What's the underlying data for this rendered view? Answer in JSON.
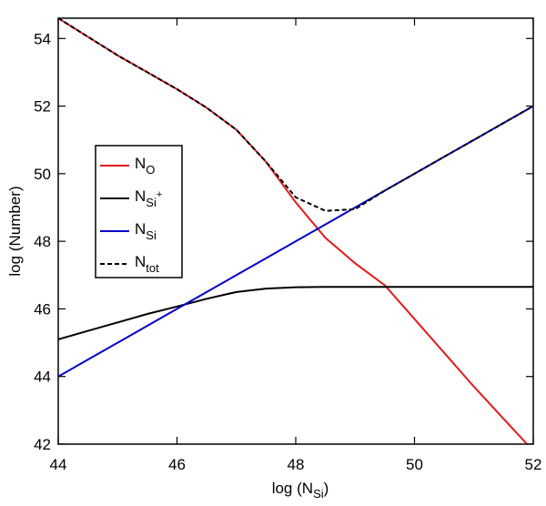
{
  "chart_data": {
    "type": "line",
    "x_label": "log (N",
    "x_label_sub": "Si",
    "x_label_end": ")",
    "y_label": "log (Number)",
    "x": [
      44,
      44.5,
      45,
      45.5,
      46,
      46.5,
      47,
      47.5,
      48,
      48.5,
      49,
      49.5,
      50,
      50.5,
      51,
      51.5,
      52
    ],
    "series": [
      {
        "name": "N",
        "subscript": "O",
        "color": "#e31a1c",
        "dash": false,
        "values": [
          54.6,
          54.05,
          53.5,
          53.0,
          52.5,
          51.95,
          51.3,
          50.35,
          49.15,
          48.1,
          47.35,
          46.7,
          45.7,
          44.7,
          43.7,
          42.75,
          41.8
        ]
      },
      {
        "name": "N",
        "subscript": "Si",
        "superscript": "+",
        "color": "#000000",
        "dash": false,
        "values": [
          45.1,
          45.35,
          45.6,
          45.85,
          46.07,
          46.3,
          46.5,
          46.6,
          46.64,
          46.65,
          46.65,
          46.65,
          46.65,
          46.65,
          46.65,
          46.65,
          46.65
        ]
      },
      {
        "name": "N",
        "subscript": "Si",
        "color": "#0000cc",
        "dash": false,
        "values": [
          44,
          44.5,
          45,
          45.5,
          46,
          46.5,
          47,
          47.5,
          48,
          48.5,
          49,
          49.5,
          50,
          50.5,
          51,
          51.5,
          52
        ]
      },
      {
        "name": "N",
        "subscript": "tot",
        "color": "#000000",
        "dash": true,
        "values": [
          54.6,
          54.05,
          53.5,
          53.0,
          52.5,
          51.95,
          51.3,
          50.35,
          49.3,
          48.9,
          48.95,
          49.5,
          50,
          50.5,
          51,
          51.5,
          52
        ]
      }
    ],
    "xlim": [
      44,
      52
    ],
    "ylim": [
      42,
      54.6
    ],
    "xticks": [
      44,
      46,
      48,
      50,
      52
    ],
    "yticks": [
      42,
      44,
      46,
      48,
      50,
      52,
      54
    ]
  }
}
